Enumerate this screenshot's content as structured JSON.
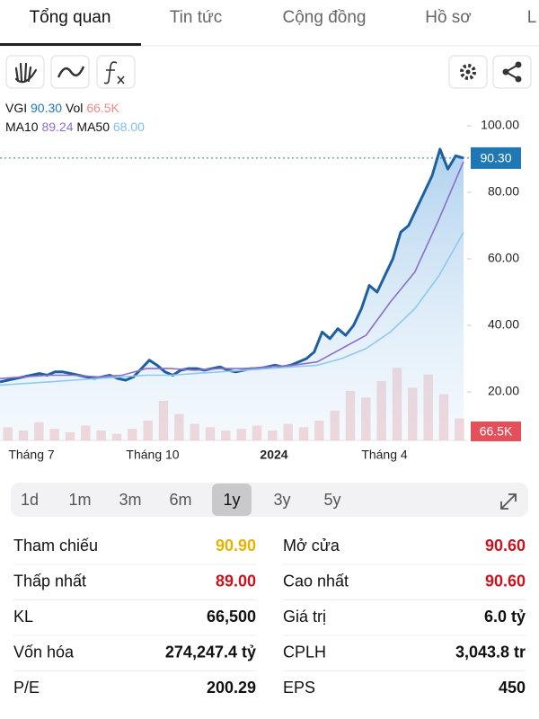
{
  "tabs": [
    "Tổng quan",
    "Tin tức",
    "Cộng đồng",
    "Hồ sơ",
    "L"
  ],
  "active_tab": 0,
  "legend": {
    "symbol": "VGI",
    "price": "90.30",
    "vol_label": "Vol",
    "vol": "66.5K",
    "ma10_label": "MA10",
    "ma10": "89.24",
    "ma50_label": "MA50",
    "ma50": "68.00"
  },
  "chart_data": {
    "type": "line",
    "ylim": [
      5.4,
      97.3
    ],
    "yticks": [
      {
        "value": 20,
        "label": "20.00"
      },
      {
        "value": 40,
        "label": "40.00"
      },
      {
        "value": 60,
        "label": "60.00"
      },
      {
        "value": 80,
        "label": "80.00"
      },
      {
        "value": 100,
        "label": "100.00"
      }
    ],
    "xticks": [
      "Tháng 7",
      "Tháng 10",
      "2024",
      "Tháng 4"
    ],
    "series": [
      {
        "name": "VGI",
        "color": "#1d5fa0",
        "values": [
          23,
          23.5,
          24,
          24.5,
          25,
          25.5,
          25,
          26,
          26,
          25.5,
          25,
          24.5,
          24,
          24.5,
          25,
          24,
          23.5,
          24.5,
          27,
          29.5,
          28,
          26,
          25,
          26.5,
          27,
          27,
          26.5,
          27,
          27.5,
          26.5,
          26,
          26.5,
          27,
          27,
          27.5,
          28,
          27.5,
          28,
          29,
          30,
          32,
          38,
          36,
          39,
          37,
          40,
          45,
          52,
          50,
          55,
          60,
          68,
          70,
          75,
          80,
          85,
          93,
          87,
          91,
          90.3
        ]
      },
      {
        "name": "MA10",
        "color": "#8a6fc9",
        "values": [
          24,
          24.5,
          25,
          25,
          24.5,
          25,
          27,
          27,
          26.5,
          27,
          27,
          27.5,
          28,
          29,
          33,
          37,
          47,
          56,
          72,
          89.24
        ]
      },
      {
        "name": "MA50",
        "color": "#8ec9ee",
        "values": [
          22,
          22.5,
          23,
          23.5,
          24,
          24.5,
          25,
          25,
          25.5,
          26,
          26.5,
          27,
          27.5,
          28,
          30,
          33,
          38,
          45,
          55,
          68
        ]
      }
    ],
    "last_price": {
      "value": 90.3,
      "label": "90.30"
    },
    "volume": {
      "ylim": [
        0,
        300
      ],
      "color": "#f0b9bd",
      "last_label": "66.5K",
      "values": [
        40,
        30,
        55,
        35,
        25,
        45,
        30,
        20,
        35,
        60,
        120,
        80,
        50,
        40,
        30,
        35,
        45,
        30,
        50,
        40,
        60,
        90,
        150,
        130,
        180,
        220,
        160,
        200,
        140,
        66.5
      ]
    }
  },
  "ranges": [
    "1d",
    "1m",
    "3m",
    "6m",
    "1y",
    "3y",
    "5y"
  ],
  "active_range": 4,
  "stats": [
    {
      "label": "Tham chiếu",
      "value": "90.90",
      "color": "#e5b300"
    },
    {
      "label": "Mở cửa",
      "value": "90.60",
      "color": "#c8141e"
    },
    {
      "label": "Thấp nhất",
      "value": "89.00",
      "color": "#c8141e"
    },
    {
      "label": "Cao nhất",
      "value": "90.60",
      "color": "#c8141e"
    },
    {
      "label": "KL",
      "value": "66,500",
      "color": "#111111"
    },
    {
      "label": "Giá trị",
      "value": "6.0 tỷ",
      "color": "#111111"
    },
    {
      "label": "Vốn hóa",
      "value": "274,247.4 tỷ",
      "color": "#111111"
    },
    {
      "label": "CPLH",
      "value": "3,043.8 tr",
      "color": "#111111"
    },
    {
      "label": "P/E",
      "value": "200.29",
      "color": "#111111"
    },
    {
      "label": "EPS",
      "value": "450",
      "color": "#111111"
    }
  ]
}
